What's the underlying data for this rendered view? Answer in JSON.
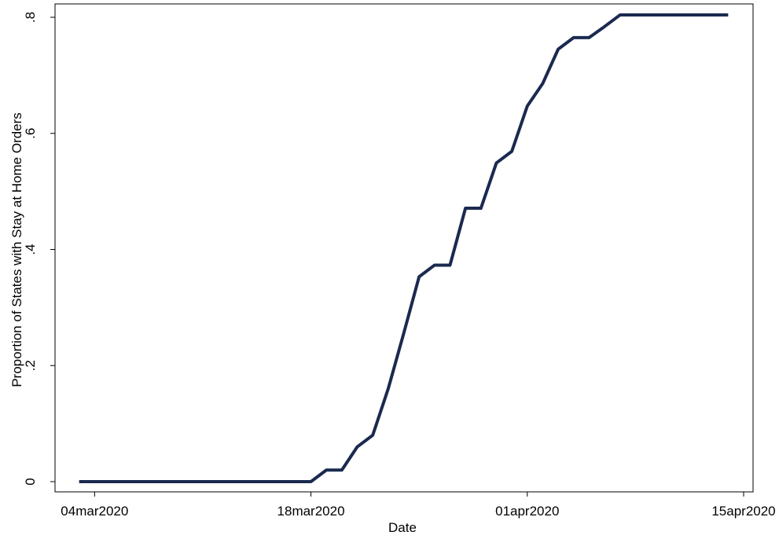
{
  "chart_data": {
    "type": "line",
    "title": "",
    "xlabel": "Date",
    "ylabel": "Proportion of States with Stay at Home Orders",
    "xlim": [
      "2020-03-02",
      "2020-04-15"
    ],
    "ylim": [
      0,
      0.8
    ],
    "x_ticks": [
      {
        "date": "2020-03-04",
        "label": "04mar2020"
      },
      {
        "date": "2020-03-18",
        "label": "18mar2020"
      },
      {
        "date": "2020-04-01",
        "label": "01apr2020"
      },
      {
        "date": "2020-04-15",
        "label": "15apr2020"
      }
    ],
    "y_ticks": [
      {
        "value": 0,
        "label": "0"
      },
      {
        "value": 0.2,
        "label": ".2"
      },
      {
        "value": 0.4,
        "label": ".4"
      },
      {
        "value": 0.6,
        "label": ".6"
      },
      {
        "value": 0.8,
        "label": ".8"
      }
    ],
    "grid": false,
    "line_color": "#1a2a4f",
    "series": [
      {
        "x": [
          "2020-03-03",
          "2020-03-04",
          "2020-03-05",
          "2020-03-06",
          "2020-03-07",
          "2020-03-08",
          "2020-03-09",
          "2020-03-10",
          "2020-03-11",
          "2020-03-12",
          "2020-03-13",
          "2020-03-14",
          "2020-03-15",
          "2020-03-16",
          "2020-03-17",
          "2020-03-18",
          "2020-03-19",
          "2020-03-20",
          "2020-03-21",
          "2020-03-22",
          "2020-03-23",
          "2020-03-24",
          "2020-03-25",
          "2020-03-26",
          "2020-03-27",
          "2020-03-28",
          "2020-03-29",
          "2020-03-30",
          "2020-03-31",
          "2020-04-01",
          "2020-04-02",
          "2020-04-03",
          "2020-04-04",
          "2020-04-05",
          "2020-04-06",
          "2020-04-07",
          "2020-04-08",
          "2020-04-09",
          "2020-04-10",
          "2020-04-11",
          "2020-04-12",
          "2020-04-13",
          "2020-04-14"
        ],
        "y": [
          0,
          0,
          0,
          0,
          0,
          0,
          0,
          0,
          0,
          0,
          0,
          0,
          0,
          0,
          0,
          0,
          0.02,
          0.02,
          0.06,
          0.08,
          0.16,
          0.255,
          0.353,
          0.373,
          0.373,
          0.471,
          0.471,
          0.549,
          0.569,
          0.647,
          0.686,
          0.745,
          0.765,
          0.765,
          0.784,
          0.804,
          0.804,
          0.804,
          0.804,
          0.804,
          0.804,
          0.804,
          0.804
        ]
      }
    ]
  }
}
